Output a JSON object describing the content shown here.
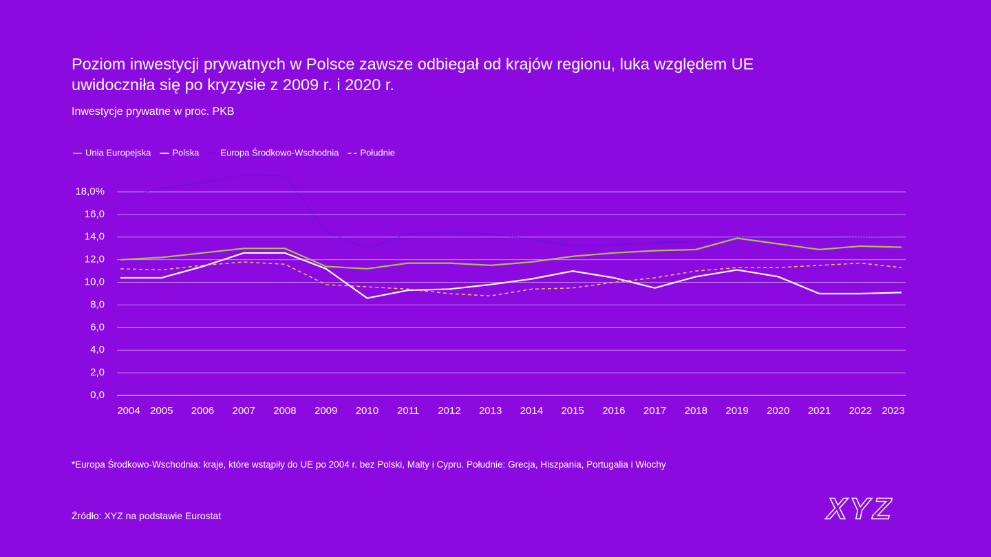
{
  "chart_data": {
    "type": "line",
    "title": "Poziom inwestycji prywatnych w Polsce zawsze odbiegał od krajów regionu, luka względem UE uwidoczniła się po kryzysie z 2009 r. i 2020 r.",
    "subtitle": "Inwestycje prywatne w proc. PKB",
    "categories": [
      "2004",
      "2005",
      "2006",
      "2007",
      "2008",
      "2009",
      "2010",
      "2011",
      "2012",
      "2013",
      "2014",
      "2015",
      "2016",
      "2017",
      "2018",
      "2019",
      "2020",
      "2021",
      "2022",
      "2023"
    ],
    "series": [
      {
        "name": "Unia Europejska",
        "color": "#a9c24c",
        "dash": "solid",
        "values": [
          12.0,
          12.2,
          12.6,
          13.0,
          13.0,
          11.4,
          11.2,
          11.7,
          11.7,
          11.5,
          11.8,
          12.3,
          12.6,
          12.8,
          12.9,
          13.9,
          13.4,
          12.9,
          13.2,
          13.1
        ]
      },
      {
        "name": "Polska",
        "color": "#ffffff",
        "dash": "solid",
        "values": [
          10.4,
          10.4,
          11.4,
          12.6,
          12.6,
          11.2,
          8.6,
          9.3,
          9.4,
          9.8,
          10.3,
          11.0,
          10.4,
          9.5,
          10.5,
          11.1,
          10.5,
          9.0,
          9.0,
          9.1
        ]
      },
      {
        "name": "Europa Środkowo-Wschodnia",
        "color": "#3322d6",
        "dash": "dotted",
        "values": [
          17.5,
          18.3,
          18.8,
          19.5,
          19.4,
          14.5,
          13.0,
          14.3,
          14.4,
          14.3,
          13.8,
          13.2,
          13.3,
          13.5,
          13.6,
          14.0,
          13.8,
          13.8,
          14.0,
          14.1
        ]
      },
      {
        "name": "Południe",
        "color": "#f2c35c",
        "dash": "dashed",
        "values": [
          11.2,
          11.1,
          11.5,
          11.8,
          11.6,
          9.8,
          9.6,
          9.4,
          9.0,
          8.8,
          9.4,
          9.5,
          10.0,
          10.4,
          11.0,
          11.3,
          11.3,
          11.5,
          11.7,
          11.3
        ]
      }
    ],
    "ylim": [
      0,
      18
    ],
    "yticks": [
      {
        "value": 0,
        "label": "0,0"
      },
      {
        "value": 2,
        "label": "2,0"
      },
      {
        "value": 4,
        "label": "4,0"
      },
      {
        "value": 6,
        "label": "6,0"
      },
      {
        "value": 8,
        "label": "8,0"
      },
      {
        "value": 10,
        "label": "10,0"
      },
      {
        "value": 12,
        "label": "12,0"
      },
      {
        "value": 14,
        "label": "14,0"
      },
      {
        "value": 16,
        "label": "16,0"
      },
      {
        "value": 18,
        "label": "18,0%"
      }
    ],
    "grid": true,
    "legend": "top-left",
    "footnote": "*Europa Środkowo-Wschodnia: kraje, które wstąpiły do UE po 2004 r. bez Polski, Malty i Cypru. Południe: Grecja, Hiszpania, Portugalia i Włochy",
    "source": "Źródło: XYZ na podstawie Eurostat",
    "logo": "XYZ"
  }
}
